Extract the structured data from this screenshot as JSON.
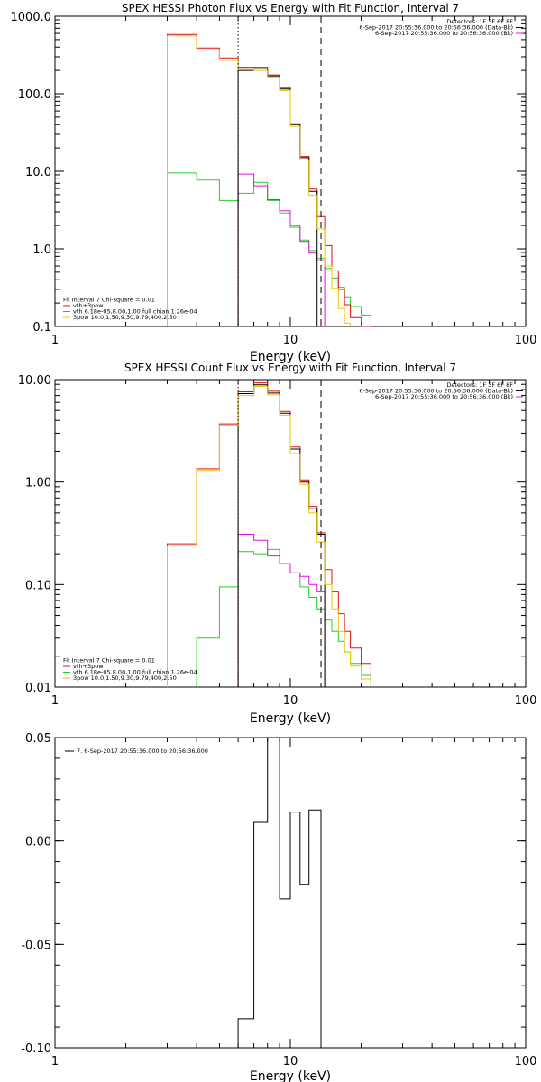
{
  "colors": {
    "black": "#000000",
    "red": "#e01010",
    "green": "#20d020",
    "yellow": "#e8c800",
    "magenta": "#e010e0"
  },
  "chart_data": [
    {
      "type": "line",
      "title": "SPEX HESSI Photon Flux vs Energy with Fit Function, Interval 7",
      "xlabel": "Energy (keV)",
      "ylabel": "",
      "xscale": "log",
      "yscale": "log",
      "xlim": [
        1,
        100
      ],
      "ylim": [
        0.1,
        1000
      ],
      "xticks": [
        {
          "v": 1,
          "label": "1"
        },
        {
          "v": 10,
          "label": "10"
        },
        {
          "v": 100,
          "label": "100"
        }
      ],
      "yticks": [
        {
          "v": 0.1,
          "label": "0.1"
        },
        {
          "v": 1,
          "label": "1.0"
        },
        {
          "v": 10,
          "label": "10.0"
        },
        {
          "v": 100,
          "label": "100.0"
        },
        {
          "v": 1000,
          "label": "1000.0"
        }
      ],
      "vlines": [
        {
          "x": 6,
          "style": "dotted"
        },
        {
          "x": 13.5,
          "style": "dashed"
        }
      ],
      "legend_topright": [
        {
          "text": "Detectors: 1F 3F 6F 8F",
          "color": ""
        },
        {
          "text": "6-Sep-2017 20:55:36.000 to 20:56:36.000 (Data-Bk)",
          "color": "black"
        },
        {
          "text": "6-Sep-2017 20:55:36.000 to 20:56:36.000 (Bk)",
          "color": "magenta"
        }
      ],
      "legend_bottomleft": [
        {
          "text": "Fit Interval 7   Chi-square = 0.01",
          "color": ""
        },
        {
          "text": "vth+3pow",
          "color": "red"
        },
        {
          "text": "vth 6.18e-05,8.00,1.00  full chian 1.26e-04",
          "color": "green"
        },
        {
          "text": "3pow 10.0,1.50,9.30,9.79,400,2.50",
          "color": "yellow"
        }
      ],
      "edges": [
        3,
        4,
        5,
        6,
        7,
        8,
        9,
        10,
        11,
        12,
        13,
        14,
        15,
        16,
        17,
        18,
        20,
        22
      ],
      "series": [
        {
          "color": "black",
          "values": [
            null,
            null,
            null,
            200,
            210,
            170,
            115,
            40,
            15,
            5.5,
            null,
            null,
            null,
            null,
            null,
            null,
            null
          ]
        },
        {
          "color": "red",
          "values": [
            580,
            390,
            290,
            220,
            220,
            175,
            120,
            41,
            15.5,
            5.9,
            2.6,
            1.1,
            0.52,
            0.3,
            0.19,
            0.13,
            0.1
          ]
        },
        {
          "color": "yellow",
          "values": [
            560,
            370,
            270,
            210,
            200,
            165,
            110,
            38,
            14,
            4.9,
            1.8,
            0.6,
            0.31,
            0.17,
            0.11,
            null,
            null
          ]
        },
        {
          "color": "green",
          "values": [
            9.5,
            7.7,
            4.2,
            5.2,
            7.2,
            4.2,
            2.9,
            1.9,
            1.3,
            0.95,
            0.75,
            0.56,
            0.42,
            0.32,
            0.24,
            0.18,
            0.14
          ]
        },
        {
          "color": "magenta",
          "values": [
            null,
            null,
            null,
            9.2,
            6.5,
            4.3,
            3.1,
            2.0,
            1.25,
            0.88,
            0.7,
            null,
            null,
            null,
            null,
            null,
            null
          ]
        }
      ]
    },
    {
      "type": "line",
      "title": "SPEX HESSI Count Flux vs Energy with Fit Function, Interval 7",
      "xlabel": "Energy (keV)",
      "ylabel": "",
      "xscale": "log",
      "yscale": "log",
      "xlim": [
        1,
        100
      ],
      "ylim": [
        0.01,
        10
      ],
      "xticks": [
        {
          "v": 1,
          "label": "1"
        },
        {
          "v": 10,
          "label": "10"
        },
        {
          "v": 100,
          "label": "100"
        }
      ],
      "yticks": [
        {
          "v": 0.01,
          "label": "0.01"
        },
        {
          "v": 0.1,
          "label": "0.10"
        },
        {
          "v": 1,
          "label": "1.00"
        },
        {
          "v": 10,
          "label": "10.00"
        }
      ],
      "vlines": [
        {
          "x": 6,
          "style": "dotted"
        },
        {
          "x": 13.5,
          "style": "dashed"
        }
      ],
      "legend_topright": [
        {
          "text": "Detectors: 1F 3F 6F 8F",
          "color": ""
        },
        {
          "text": "6-Sep-2017 20:55:36.000 to 20:56:36.000 (Data-Bk)",
          "color": "black"
        },
        {
          "text": "6-Sep-2017 20:55:36.000 to 20:56:36.000 (Bk)",
          "color": "magenta"
        }
      ],
      "legend_bottomleft": [
        {
          "text": "Fit Interval 7   Chi-square = 0.01",
          "color": ""
        },
        {
          "text": "vth+3pow",
          "color": "red"
        },
        {
          "text": "vth 6.18e-05,8.00,1.00  full chian 1.26e-04",
          "color": "green"
        },
        {
          "text": "3pow 10.0,1.50,9.30,9.79,400,2.50",
          "color": "yellow"
        }
      ],
      "edges": [
        3,
        4,
        5,
        6,
        7,
        8,
        9,
        10,
        11,
        12,
        13,
        14,
        15,
        16,
        17,
        18,
        20,
        22
      ],
      "series": [
        {
          "color": "black",
          "values": [
            null,
            null,
            null,
            7.3,
            8.9,
            7.4,
            4.7,
            2.1,
            1.0,
            0.55,
            0.31,
            null,
            null,
            null,
            null,
            null,
            null
          ]
        },
        {
          "color": "red",
          "values": [
            0.25,
            1.35,
            3.7,
            7.6,
            9.3,
            7.7,
            4.9,
            2.2,
            1.05,
            0.58,
            0.32,
            0.14,
            0.085,
            0.052,
            0.035,
            0.024,
            0.017
          ]
        },
        {
          "color": "yellow",
          "values": [
            0.24,
            1.3,
            3.6,
            7.0,
            8.6,
            7.1,
            4.5,
            1.9,
            0.95,
            0.5,
            0.26,
            0.1,
            0.058,
            0.035,
            0.022,
            0.016,
            0.012
          ]
        },
        {
          "color": "green",
          "values": [
            null,
            0.03,
            0.095,
            0.21,
            0.2,
            0.22,
            0.16,
            0.13,
            0.095,
            0.075,
            0.058,
            0.045,
            0.035,
            0.028,
            0.022,
            0.017,
            0.013
          ]
        },
        {
          "color": "magenta",
          "values": [
            null,
            null,
            null,
            0.31,
            0.27,
            0.19,
            0.16,
            0.13,
            0.12,
            0.1,
            0.085,
            null,
            null,
            null,
            null,
            null,
            null
          ]
        }
      ]
    },
    {
      "type": "line",
      "title": "",
      "xlabel": "Energy (keV)",
      "ylabel": "",
      "xscale": "log",
      "yscale": "linear",
      "xlim": [
        1,
        100
      ],
      "ylim": [
        -0.1,
        0.05
      ],
      "xticks": [
        {
          "v": 1,
          "label": "1"
        },
        {
          "v": 10,
          "label": "10"
        },
        {
          "v": 100,
          "label": "100"
        }
      ],
      "yticks": [
        {
          "v": -0.1,
          "label": "-0.10"
        },
        {
          "v": -0.05,
          "label": "-0.05"
        },
        {
          "v": 0,
          "label": "0.00"
        },
        {
          "v": 0.05,
          "label": "0.05"
        }
      ],
      "vlines": [],
      "legend_topleft": [
        {
          "text": "7.  6-Sep-2017 20:55:36.000 to 20:56:36.000",
          "color": "black"
        }
      ],
      "edges": [
        6,
        7,
        8,
        9,
        10,
        11,
        12,
        13.5
      ],
      "series": [
        {
          "color": "black",
          "values": [
            -0.086,
            0.009,
            0.05,
            -0.028,
            0.014,
            -0.021,
            0.015
          ]
        }
      ]
    }
  ]
}
